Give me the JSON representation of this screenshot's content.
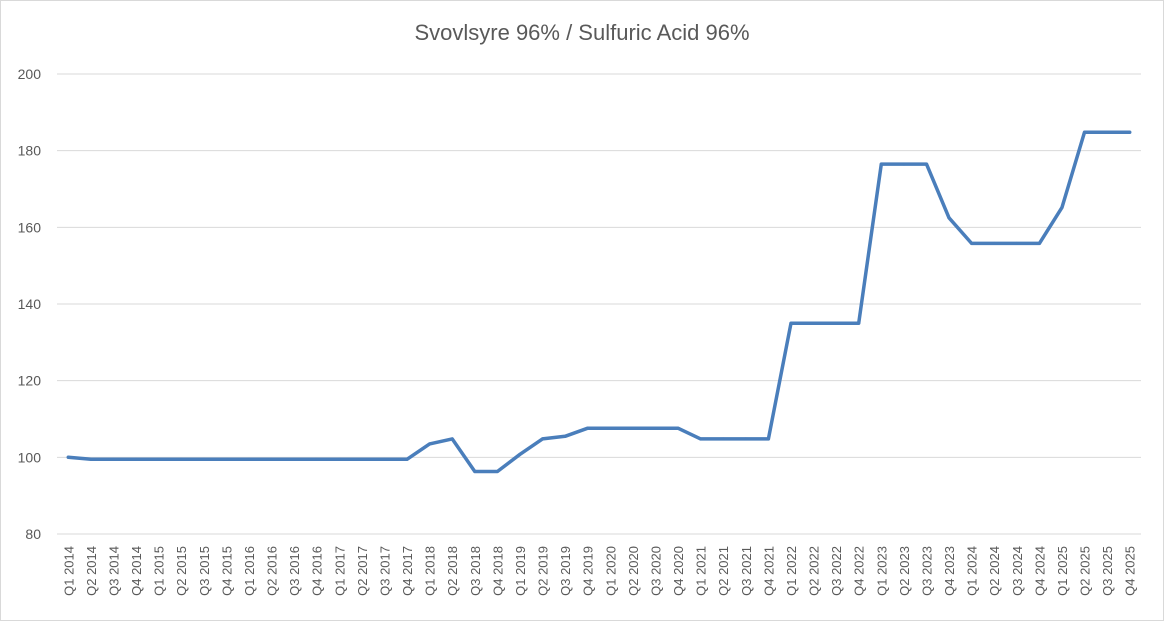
{
  "chart_data": {
    "type": "line",
    "title": "Svovlsyre 96% / Sulfuric Acid 96%",
    "xlabel": "",
    "ylabel": "",
    "ylim": [
      80,
      200
    ],
    "yticks": [
      80,
      100,
      120,
      140,
      160,
      180,
      200
    ],
    "grid": true,
    "legend": "none",
    "colors": {
      "line": "#4a7ebb",
      "grid": "#d9d9d9",
      "text": "#595959"
    },
    "categories": [
      "Q1 2014",
      "Q2 2014",
      "Q3 2014",
      "Q4 2014",
      "Q1 2015",
      "Q2 2015",
      "Q3 2015",
      "Q4 2015",
      "Q1 2016",
      "Q2 2016",
      "Q3 2016",
      "Q4 2016",
      "Q1 2017",
      "Q2 2017",
      "Q3 2017",
      "Q4 2017",
      "Q1 2018",
      "Q2 2018",
      "Q3 2018",
      "Q4 2018",
      "Q1 2019",
      "Q2 2019",
      "Q3 2019",
      "Q4 2019",
      "Q1 2020",
      "Q2 2020",
      "Q3 2020",
      "Q4 2020",
      "Q1 2021",
      "Q2 2021",
      "Q3 2021",
      "Q4 2021",
      "Q1 2022",
      "Q2 2022",
      "Q3 2022",
      "Q4 2022",
      "Q1 2023",
      "Q2 2023",
      "Q3 2023",
      "Q4 2023",
      "Q1 2024",
      "Q2 2024",
      "Q3 2024",
      "Q4 2024",
      "Q1 2025",
      "Q2 2025",
      "Q3 2025",
      "Q4 2025"
    ],
    "series": [
      {
        "values": [
          100,
          99.5,
          99.5,
          99.5,
          99.5,
          99.5,
          99.5,
          99.5,
          99.5,
          99.5,
          99.5,
          99.5,
          99.5,
          99.5,
          99.5,
          99.5,
          103.5,
          104.8,
          96.3,
          96.3,
          100.8,
          104.8,
          105.5,
          107.6,
          107.6,
          107.6,
          107.6,
          107.6,
          104.8,
          104.8,
          104.8,
          104.8,
          135,
          135,
          135,
          135,
          176.5,
          176.5,
          176.5,
          162.5,
          155.8,
          155.8,
          155.8,
          155.8,
          165.2,
          184.8,
          184.8,
          184.8
        ]
      }
    ]
  }
}
